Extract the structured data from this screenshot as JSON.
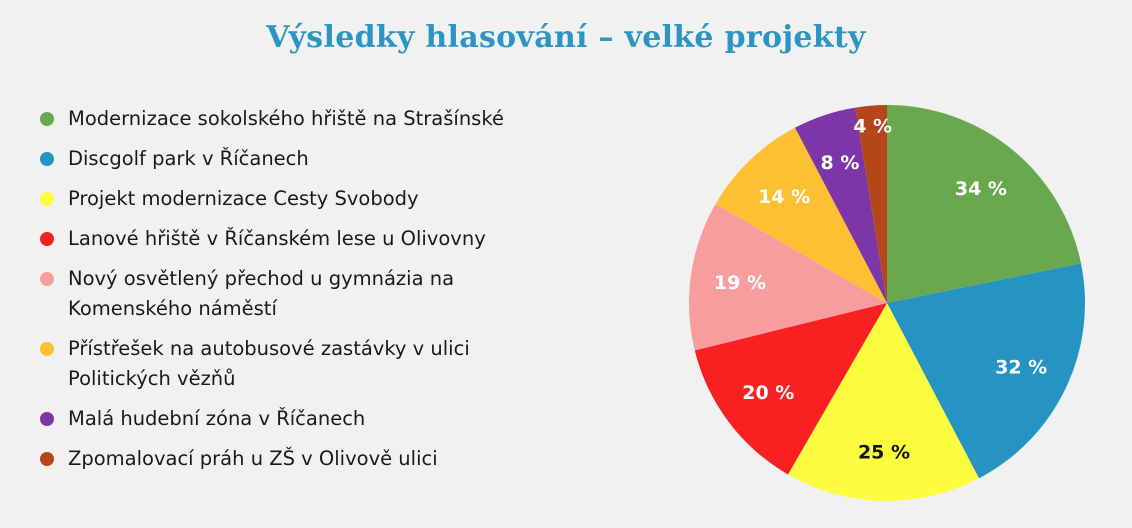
{
  "chart_data": {
    "type": "pie",
    "title": "Výsledky hlasování – velké projekty",
    "legend_position": "left",
    "slices": [
      {
        "label": "Modernizace sokolského hřiště na Strašínské",
        "value": 34,
        "value_label": "34 %",
        "color": "#6aa84f",
        "text_color": "#ffffff"
      },
      {
        "label": "Discgolf park v Říčanech",
        "value": 32,
        "value_label": "32 %",
        "color": "#2694c2",
        "text_color": "#ffffff"
      },
      {
        "label": "Projekt modernizace Cesty Svobody",
        "value": 25,
        "value_label": "25 %",
        "color": "#fdfd3f",
        "text_color": "#111111"
      },
      {
        "label": "Lanové hřiště v Říčanském lese u Olivovny",
        "value": 20,
        "value_label": "20 %",
        "color": "#f82020",
        "text_color": "#ffffff"
      },
      {
        "label": "Nový osvětlený přechod u gymnázia na Komenského náměstí",
        "value": 19,
        "value_label": "19 %",
        "color": "#f89d9d",
        "text_color": "#ffffff"
      },
      {
        "label": "Přístřešek na autobusové zastávky v ulici Politických vězňů",
        "value": 14,
        "value_label": "14 %",
        "color": "#fcc032",
        "text_color": "#ffffff"
      },
      {
        "label": "Malá hudební zóna v Říčanech",
        "value": 8,
        "value_label": "8 %",
        "color": "#7d36a8",
        "text_color": "#ffffff"
      },
      {
        "label": "Zpomalovací práh u ZŠ v Olivově ulici",
        "value": 4,
        "value_label": "4 %",
        "color": "#b5461a",
        "text_color": "#ffffff"
      }
    ]
  }
}
